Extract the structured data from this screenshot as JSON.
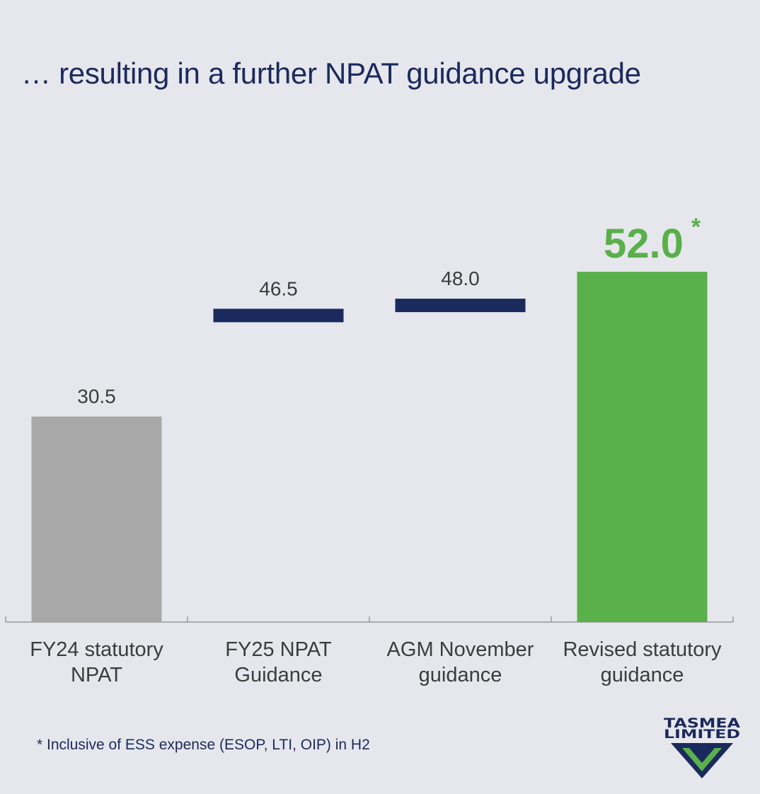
{
  "chart_data": {
    "type": "bar",
    "title": "… resulting in a further NPAT guidance upgrade",
    "categories": [
      {
        "line1": "FY24 statutory",
        "line2": "NPAT"
      },
      {
        "line1": "FY25 NPAT",
        "line2": "Guidance"
      },
      {
        "line1": "AGM November",
        "line2": "guidance"
      },
      {
        "line1": "Revised statutory",
        "line2": "guidance"
      }
    ],
    "values": [
      30.5,
      46.5,
      48.0,
      52.0
    ],
    "value_labels": [
      "30.5",
      "46.5",
      "48.0",
      "52.0"
    ],
    "styles": [
      "bar",
      "marker",
      "marker",
      "bar"
    ],
    "colors": [
      "#a8a8a8",
      "#1b2a5c",
      "#1b2a5c",
      "#5ab04a"
    ],
    "highlight_suffix": "*",
    "ylim": [
      0,
      52.0
    ],
    "grid": false
  },
  "footnote": "* Inclusive of ESS expense (ESOP, LTI, OIP) in H2",
  "logo": {
    "line1": "TASMEA",
    "line2": "LIMITED",
    "icon": "chevron-down-triangle-icon",
    "colors": {
      "navy": "#1b2a5c",
      "green": "#5ab04a"
    }
  }
}
